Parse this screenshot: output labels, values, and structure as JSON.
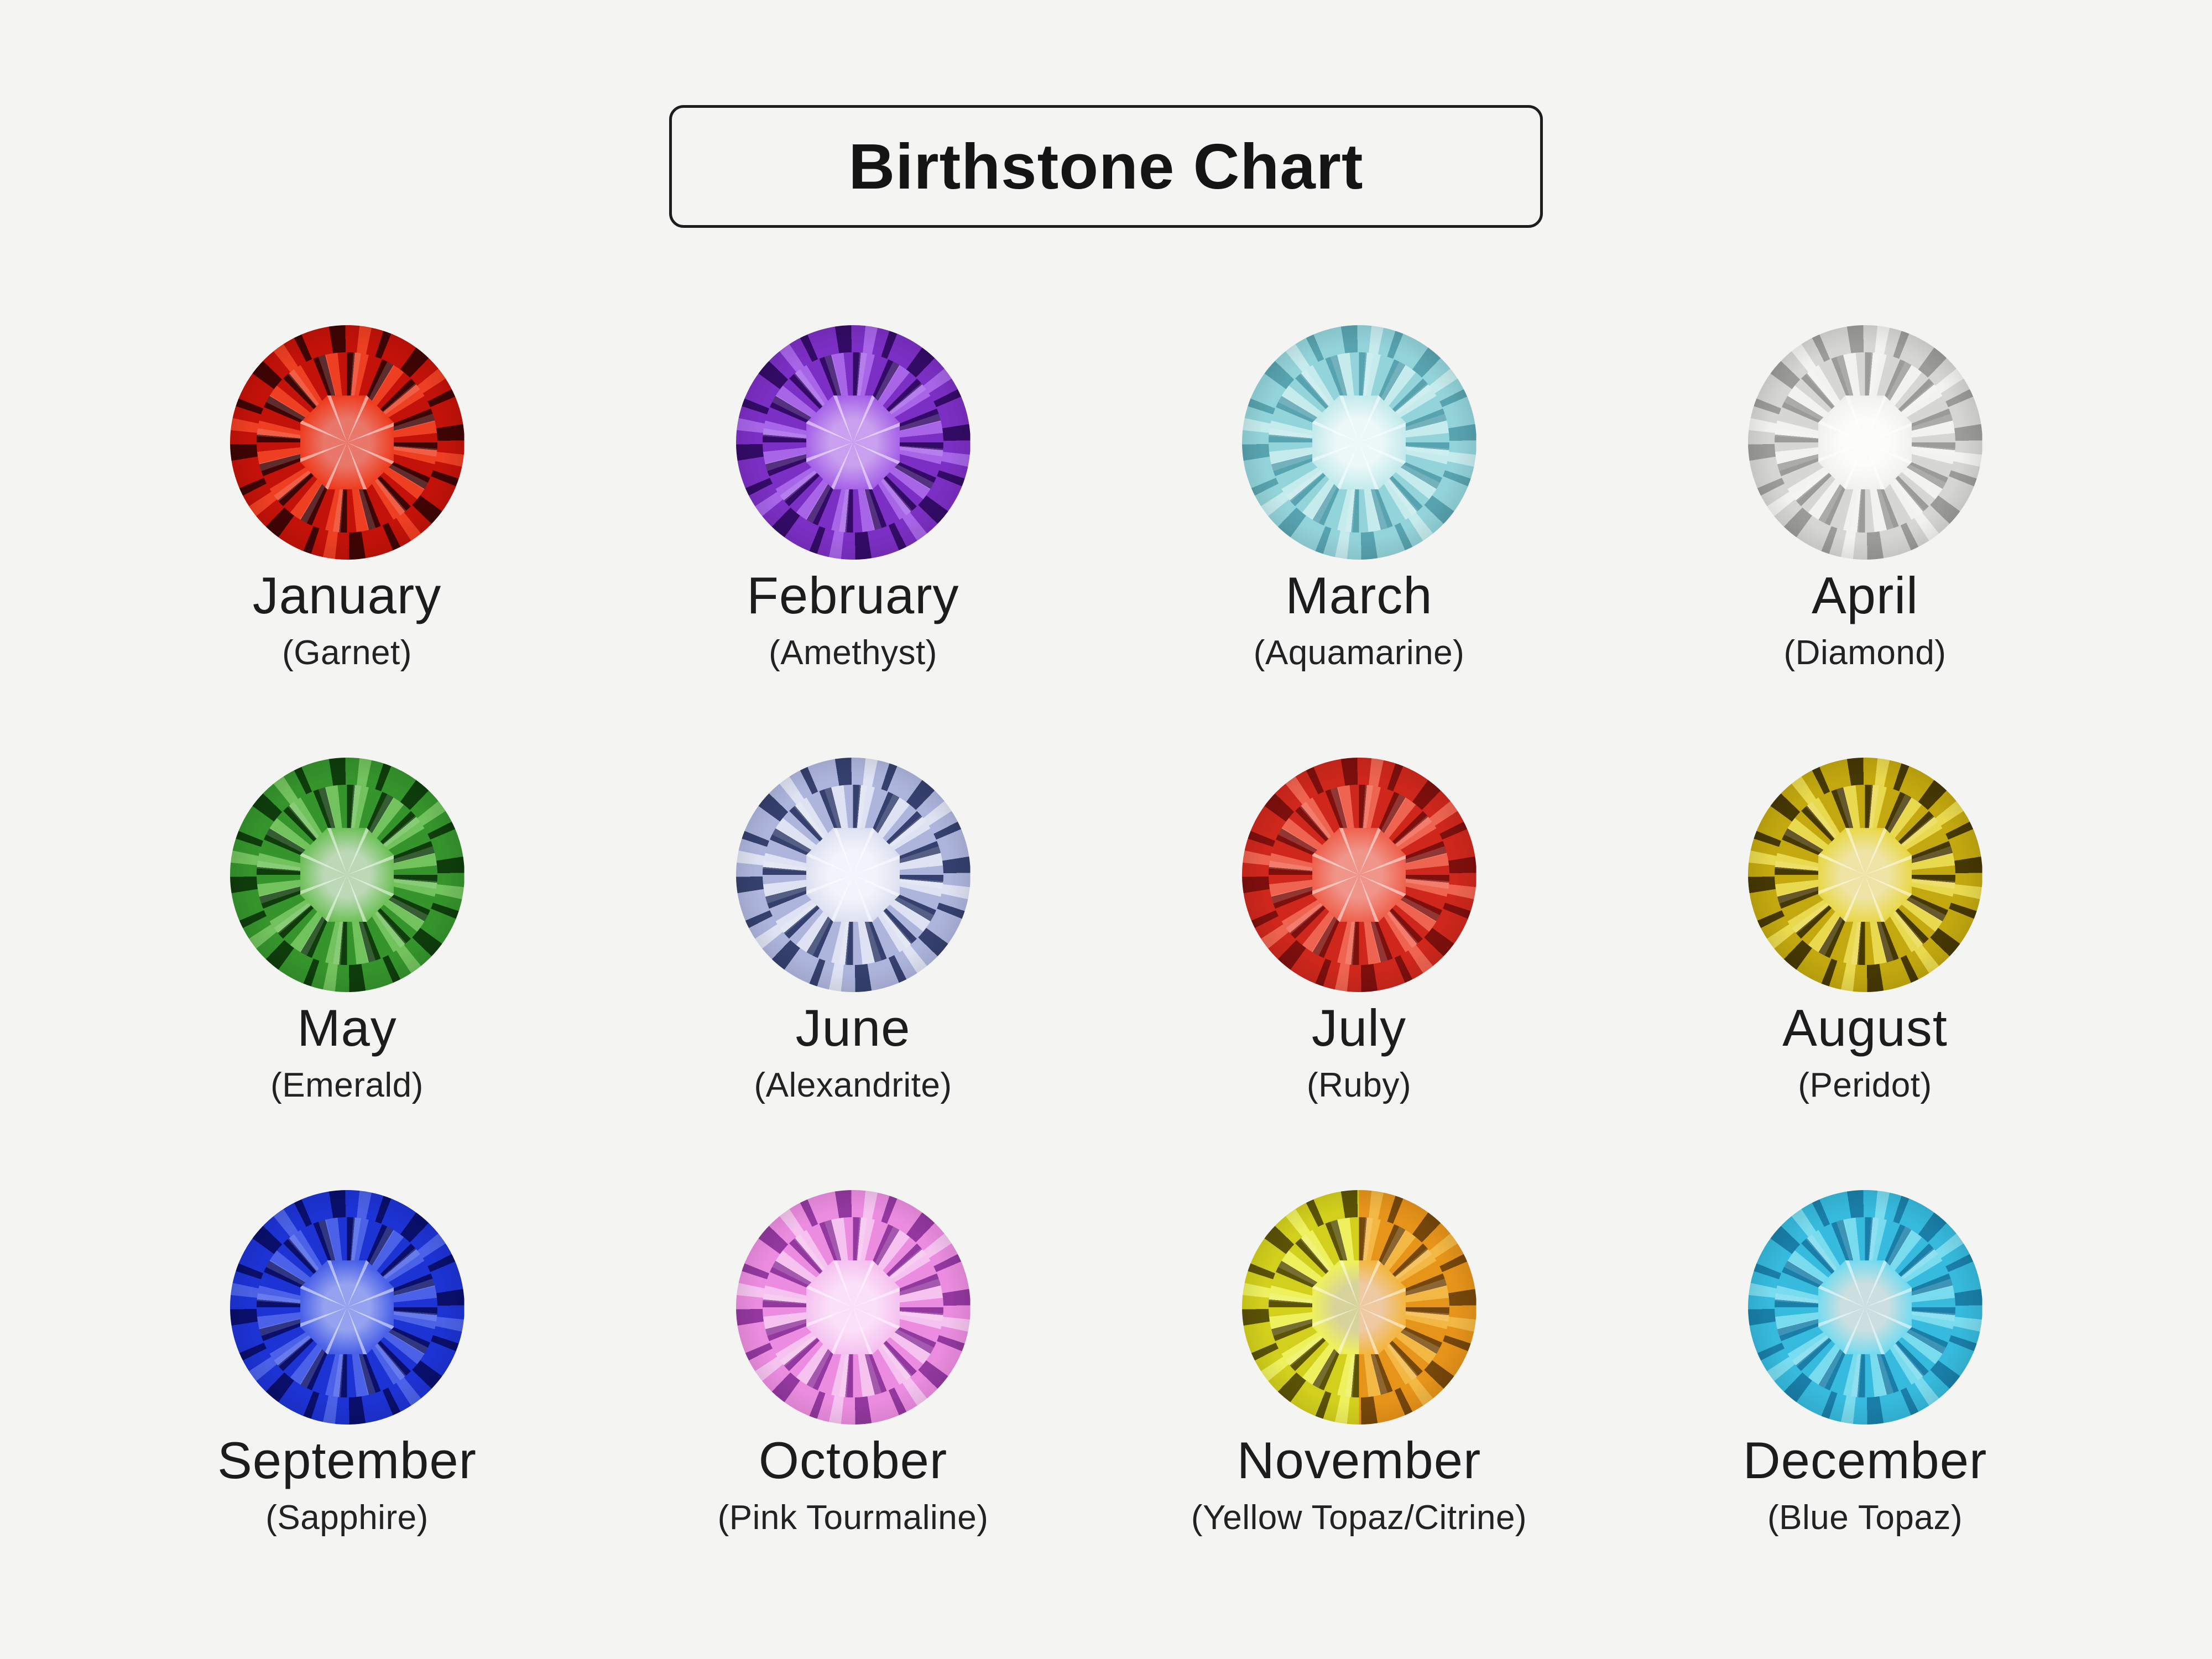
{
  "title": "Birthstone Chart",
  "page": {
    "background": "#f4f4f3",
    "text_color": "#1c1c1c",
    "box_border": "#1d1d1d"
  },
  "cells": [
    {
      "month": "January",
      "stone": "(Garnet)",
      "gem": {
        "name": "garnet",
        "dark": "#3f0404",
        "mid": "#c31209",
        "light": "#ee3f23",
        "table": "#e9776a"
      }
    },
    {
      "month": "February",
      "stone": "(Amethyst)",
      "gem": {
        "name": "amethyst",
        "dark": "#330b66",
        "mid": "#7c2fc4",
        "light": "#a865e8",
        "table": "#c9a0ef"
      }
    },
    {
      "month": "March",
      "stone": "(Aquamarine)",
      "gem": {
        "name": "aquamarine",
        "dark": "#58a3b0",
        "mid": "#93d4da",
        "light": "#c6ebed",
        "table": "#ecf8f8"
      }
    },
    {
      "month": "April",
      "stone": "(Diamond)",
      "gem": {
        "name": "diamond",
        "dark": "#9b9b99",
        "mid": "#d6d6d4",
        "light": "#f2f2f0",
        "table": "#fcfcfb"
      }
    },
    {
      "month": "May",
      "stone": "(Emerald)",
      "gem": {
        "name": "emerald",
        "dark": "#0e3d0b",
        "mid": "#35942c",
        "light": "#72c25d",
        "table": "#bcd8b6"
      }
    },
    {
      "month": "June",
      "stone": "(Alexandrite)",
      "gem": {
        "name": "alexandrite",
        "dark": "#35406e",
        "mid": "#aeb5dd",
        "light": "#dfe2f2",
        "table": "#f3f4fb"
      }
    },
    {
      "month": "July",
      "stone": "(Ruby)",
      "gem": {
        "name": "ruby",
        "dark": "#7d0f0d",
        "mid": "#cf271c",
        "light": "#ef6450",
        "table": "#f0958a"
      }
    },
    {
      "month": "August",
      "stone": "(Peridot)",
      "gem": {
        "name": "peridot",
        "dark": "#463803",
        "mid": "#c3a90f",
        "light": "#e9d94e",
        "table": "#efe4a5"
      }
    },
    {
      "month": "September",
      "stone": "(Sapphire)",
      "gem": {
        "name": "sapphire",
        "dark": "#090f6b",
        "mid": "#1d33d4",
        "light": "#4b62e8",
        "table": "#94a2ef"
      }
    },
    {
      "month": "October",
      "stone": "(Pink Tourmaline)",
      "gem": {
        "name": "pink-tourmaline",
        "dark": "#93389f",
        "mid": "#ec8ce0",
        "light": "#f6c3f0",
        "table": "#fbe0f9"
      }
    },
    {
      "month": "November",
      "stone": "(Yellow Topaz/Citrine)",
      "gem": {
        "name": "yellow-topaz",
        "dark": "#5a5206",
        "mid": "#d3d01d",
        "light": "#eef05e",
        "table": "#d8d29b"
      },
      "gem_right": {
        "name": "citrine",
        "dark": "#76470a",
        "mid": "#e7941a",
        "light": "#f3b744",
        "table": "#eec9a2"
      }
    },
    {
      "month": "December",
      "stone": "(Blue Topaz)",
      "gem": {
        "name": "blue-topaz",
        "dark": "#197fa8",
        "mid": "#36badd",
        "light": "#79dbee",
        "table": "#ccdfe0"
      }
    }
  ]
}
